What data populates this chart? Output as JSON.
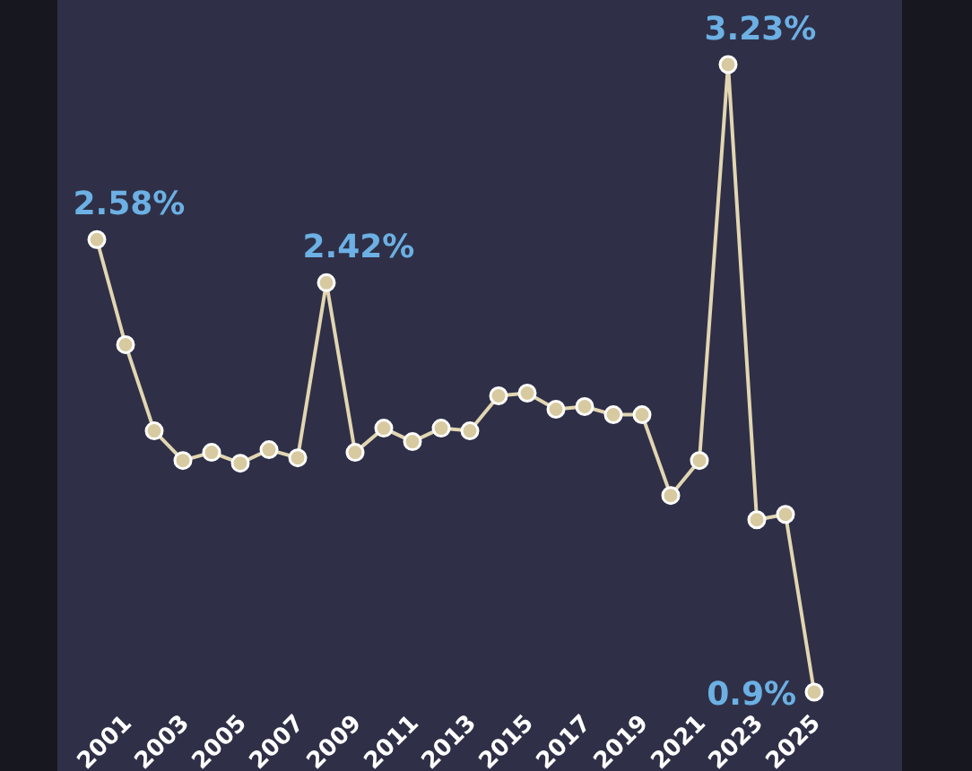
{
  "chart_data": {
    "type": "line",
    "categories": [
      null,
      "2001",
      null,
      "2003",
      null,
      "2005",
      null,
      "2007",
      null,
      "2009",
      null,
      "2011",
      null,
      "2013",
      null,
      "2015",
      null,
      "2017",
      null,
      "2019",
      null,
      "2021",
      null,
      "2023",
      null,
      "2025"
    ],
    "series": [
      {
        "color": "#e2d6b2",
        "values": [
          2.58,
          2.19,
          1.87,
          1.76,
          1.79,
          1.75,
          1.8,
          1.77,
          2.42,
          1.79,
          1.88,
          1.83,
          1.88,
          1.87,
          2.0,
          2.01,
          1.95,
          1.96,
          1.93,
          1.93,
          1.63,
          1.76,
          3.23,
          1.54,
          1.56,
          0.9
        ],
        "value_labels": [
          "2.58%",
          null,
          null,
          null,
          null,
          null,
          null,
          null,
          "2.42%",
          null,
          null,
          null,
          null,
          null,
          null,
          null,
          null,
          null,
          null,
          null,
          null,
          null,
          "3.23%",
          null,
          null,
          "0.9%"
        ]
      }
    ],
    "marker": "circle",
    "line_style": "solid",
    "tick_labels": "x"
  }
}
